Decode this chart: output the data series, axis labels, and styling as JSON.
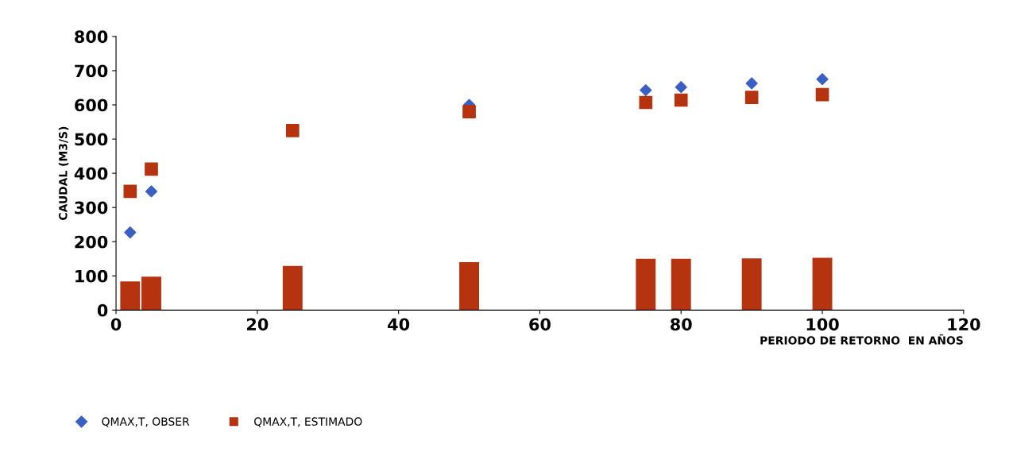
{
  "chart_data": {
    "type": "scatter",
    "xlabel": "PERIODO DE RETORNO  EN AÑOS",
    "ylabel": "CAUDAL (M3/S)",
    "xlim": [
      0,
      120
    ],
    "xticks": [
      0,
      20,
      40,
      60,
      80,
      100,
      120
    ],
    "ylim": [
      0,
      800
    ],
    "yticks": [
      0,
      100,
      200,
      300,
      400,
      500,
      600,
      700,
      800
    ],
    "legend": "bottom",
    "grid": false,
    "series": [
      {
        "name": "QMAX,T, OBSER",
        "color": "#3a5fc4",
        "marker": "diamond",
        "x": [
          2,
          5,
          50,
          75,
          80,
          90,
          100
        ],
        "values": [
          227,
          347,
          600,
          643,
          652,
          663,
          675
        ]
      },
      {
        "name": "QMAX,T, ESTIMADO",
        "color": "#b5330f",
        "marker": "square",
        "x": [
          2,
          5,
          25,
          50,
          75,
          80,
          90,
          100
        ],
        "values": [
          347,
          412,
          525,
          580,
          607,
          614,
          622,
          630
        ]
      },
      {
        "type": "bar",
        "color": "#b5330f",
        "x": [
          2,
          5,
          25,
          50,
          75,
          80,
          90,
          100
        ],
        "values": [
          84,
          98,
          129,
          140,
          150,
          150,
          151,
          153
        ]
      }
    ]
  }
}
